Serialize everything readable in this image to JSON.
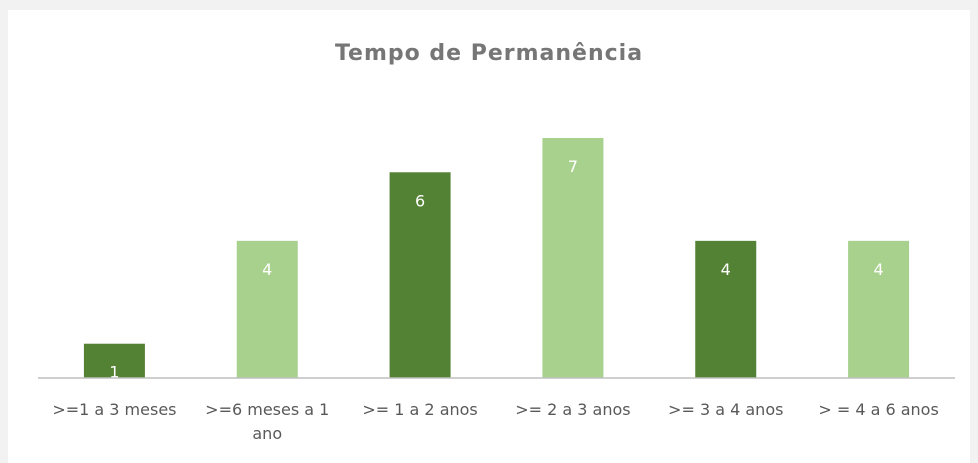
{
  "chart_data": {
    "type": "bar",
    "title": "Tempo de Permanência",
    "categories": [
      ">=1 a 3 meses",
      ">=6 meses a 1 ano",
      ">= 1 a 2 anos",
      ">= 2 a 3 anos",
      ">= 3 a 4 anos",
      "> = 4 a 6 anos"
    ],
    "values": [
      1,
      4,
      6,
      7,
      4,
      4
    ],
    "colors": [
      "#548235",
      "#a9d18e",
      "#548235",
      "#a9d18e",
      "#548235",
      "#a9d18e"
    ],
    "grid": false
  }
}
